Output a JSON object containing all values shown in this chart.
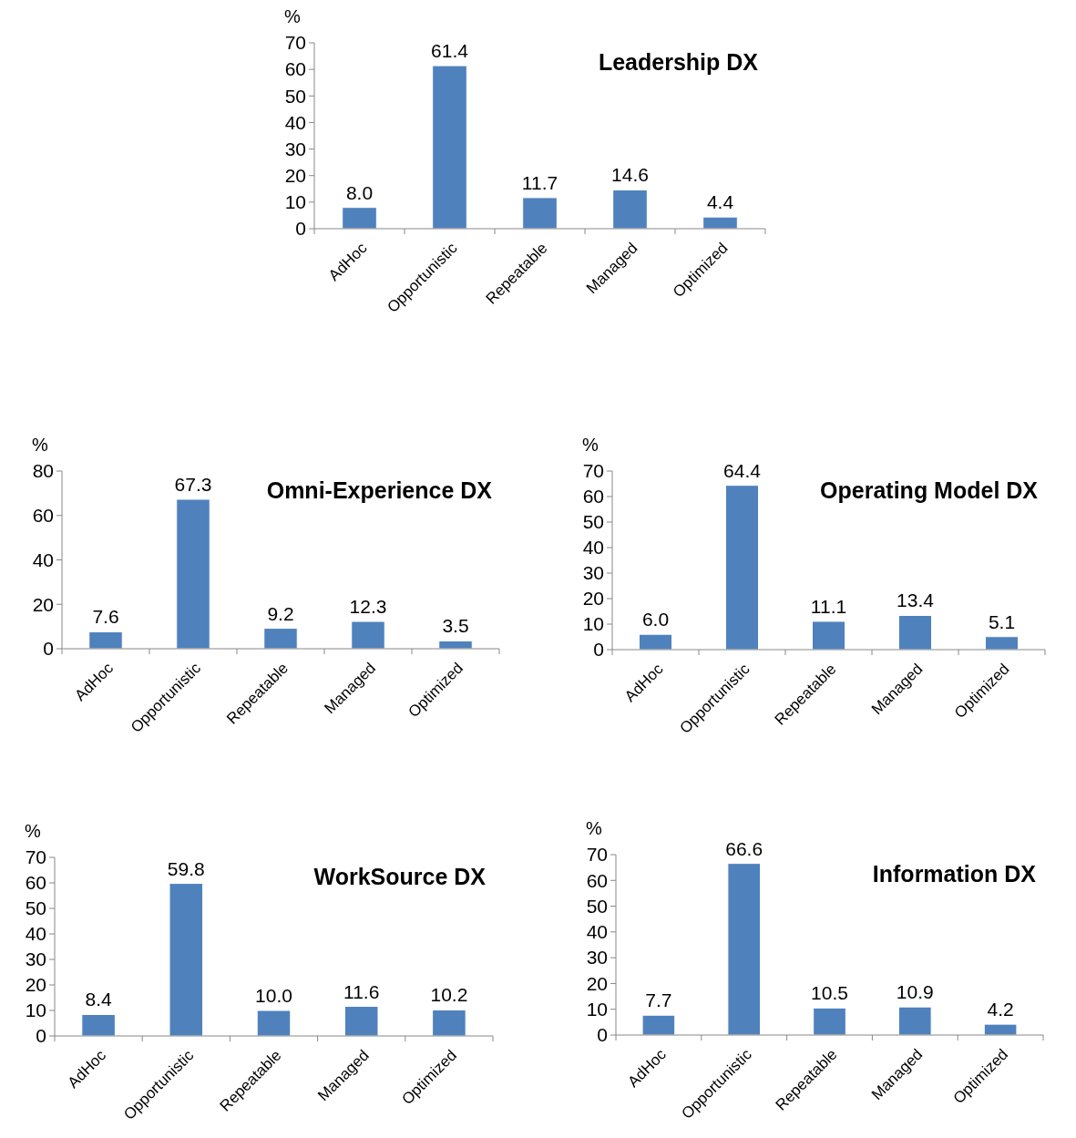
{
  "chart_data": [
    {
      "type": "bar",
      "title": "Leadership DX",
      "ylabel": "%",
      "categories": [
        "AdHoc",
        "Opportunistic",
        "Repeatable",
        "Managed",
        "Optimized"
      ],
      "values": [
        8.0,
        61.4,
        11.7,
        14.6,
        4.4
      ],
      "value_labels": [
        "8.0",
        "61.4",
        "11.7",
        "14.6",
        "4.4"
      ],
      "color": "#4f81bd",
      "ylim": [
        0,
        70
      ],
      "yticks": [
        0,
        10,
        20,
        30,
        40,
        50,
        60,
        70
      ]
    },
    {
      "type": "bar",
      "title": "Omni-Experience DX",
      "ylabel": "%",
      "categories": [
        "AdHoc",
        "Opportunistic",
        "Repeatable",
        "Managed",
        "Optimized"
      ],
      "values": [
        7.6,
        67.3,
        9.2,
        12.3,
        3.5
      ],
      "value_labels": [
        "7.6",
        "67.3",
        "9.2",
        "12.3",
        "3.5"
      ],
      "color": "#4f81bd",
      "ylim": [
        0,
        80
      ],
      "yticks": [
        0,
        20,
        40,
        60,
        80
      ]
    },
    {
      "type": "bar",
      "title": "Operating Model DX",
      "ylabel": "%",
      "categories": [
        "AdHoc",
        "Opportunistic",
        "Repeatable",
        "Managed",
        "Optimized"
      ],
      "values": [
        6.0,
        64.4,
        11.1,
        13.4,
        5.1
      ],
      "value_labels": [
        "6.0",
        "64.4",
        "11.1",
        "13.4",
        "5.1"
      ],
      "color": "#4f81bd",
      "ylim": [
        0,
        70
      ],
      "yticks": [
        0,
        10,
        20,
        30,
        40,
        50,
        60,
        70
      ]
    },
    {
      "type": "bar",
      "title": "WorkSource DX",
      "ylabel": "%",
      "categories": [
        "AdHoc",
        "Opportunistic",
        "Repeatable",
        "Managed",
        "Optimized"
      ],
      "values": [
        8.4,
        59.8,
        10.0,
        11.6,
        10.2
      ],
      "value_labels": [
        "8.4",
        "59.8",
        "10.0",
        "11.6",
        "10.2"
      ],
      "color": "#4f81bd",
      "ylim": [
        0,
        70
      ],
      "yticks": [
        0,
        10,
        20,
        30,
        40,
        50,
        60,
        70
      ]
    },
    {
      "type": "bar",
      "title": "Information DX",
      "ylabel": "%",
      "categories": [
        "AdHoc",
        "Opportunistic",
        "Repeatable",
        "Managed",
        "Optimized"
      ],
      "values": [
        7.7,
        66.6,
        10.5,
        10.9,
        4.2
      ],
      "value_labels": [
        "7.7",
        "66.6",
        "10.5",
        "10.9",
        "4.2"
      ],
      "color": "#4f81bd",
      "ylim": [
        0,
        70
      ],
      "yticks": [
        0,
        10,
        20,
        30,
        40,
        50,
        60,
        70
      ]
    }
  ]
}
